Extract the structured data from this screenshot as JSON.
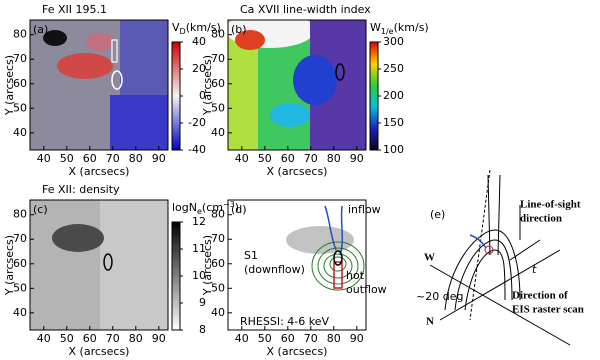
{
  "figure": {
    "panels": [
      {
        "label": "(a)",
        "title": "Fe XII 195.1",
        "xlabel": "X (arcsecs)",
        "ylabel": "Y (arcsecs)",
        "xlim": [
          34,
          94
        ],
        "ylim": [
          33,
          86
        ],
        "xticks": [
          40,
          50,
          60,
          70,
          80,
          90
        ],
        "yticks": [
          40,
          50,
          60,
          70,
          80
        ],
        "colorbar": {
          "label": {
            "base": "V",
            "sub": "D",
            "rest": "(km/s)"
          },
          "lim": [
            -40,
            40
          ],
          "ticks": [
            -40,
            -20,
            0,
            20,
            40
          ]
        }
      },
      {
        "label": "(b)",
        "title": "Ca XVII line-width index",
        "xlabel": "X (arcsecs)",
        "ylabel": "Y (arcsecs)",
        "xlim": [
          34,
          94
        ],
        "ylim": [
          33,
          86
        ],
        "xticks": [
          40,
          50,
          60,
          70,
          80,
          90
        ],
        "yticks": [
          40,
          50,
          60,
          70,
          80
        ],
        "colorbar": {
          "label": {
            "base": "W",
            "sub": "1/e",
            "rest": "(km/s)"
          },
          "lim": [
            100,
            300
          ],
          "ticks": [
            100,
            150,
            200,
            250,
            300
          ]
        }
      },
      {
        "label": "(c)",
        "title": "Fe XII: density",
        "xlabel": "X (arcsecs)",
        "ylabel": "Y (arcsecs)",
        "xlim": [
          34,
          94
        ],
        "ylim": [
          33,
          86
        ],
        "xticks": [
          40,
          50,
          60,
          70,
          80,
          90
        ],
        "yticks": [
          40,
          50,
          60,
          70,
          80
        ],
        "colorbar": {
          "label": {
            "base": "logN",
            "sub": "e",
            "rest": "(cm",
            "sup": "−3",
            "end": ")"
          },
          "lim": [
            8,
            12
          ],
          "ticks": [
            8,
            9,
            10,
            11,
            12
          ]
        }
      },
      {
        "label": "(d)",
        "xlabel": "X (arcsecs)",
        "ylabel": "Y (arcsecs)",
        "xlim": [
          34,
          94
        ],
        "ylim": [
          33,
          86
        ],
        "xticks": [
          40,
          50,
          60,
          70,
          80,
          90
        ],
        "yticks": [
          40,
          50,
          60,
          70,
          80
        ],
        "annotations": [
          "inflow",
          "S1",
          "(downflow)",
          "hot",
          "outflow",
          "RHESSI: 4-6 keV"
        ]
      }
    ],
    "diagram": {
      "label": "(e)",
      "los": [
        "Line-of-sight",
        "direction"
      ],
      "t": "t",
      "w": "W",
      "n": "N",
      "angle": "~20 deg",
      "scan": [
        "Direction of",
        "EIS raster scan"
      ]
    }
  }
}
